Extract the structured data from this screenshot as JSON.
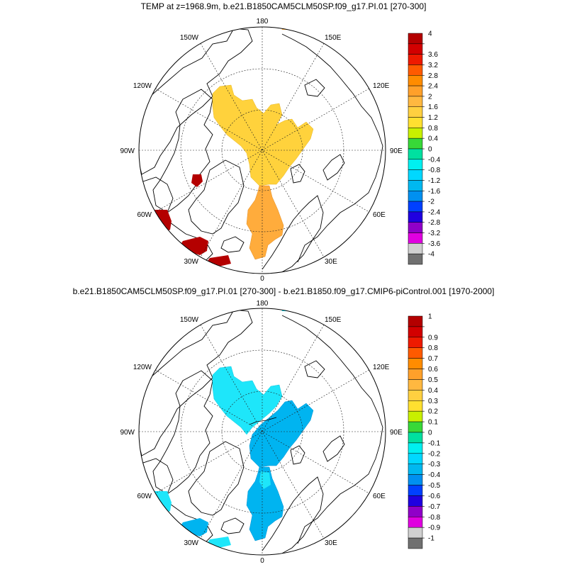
{
  "chart_data": [
    {
      "type": "polar-stereographic-map",
      "title": "TEMP at z=1968.9m, b.e21.B1850CAM5CLM50SP.f09_g17.PI.01 [270-300]",
      "longitude_labels": [
        "180",
        "150E",
        "120E",
        "90E",
        "60E",
        "30E",
        "0",
        "30W",
        "60W",
        "90W",
        "120W",
        "150W"
      ],
      "colorbar": {
        "labels": [
          "4",
          "3.6",
          "3.2",
          "2.8",
          "2.4",
          "2",
          "1.6",
          "1.2",
          "0.8",
          "0.4",
          "0",
          "-0.4",
          "-0.8",
          "-1.2",
          "-1.6",
          "-2",
          "-2.4",
          "-2.8",
          "-3.2",
          "-3.6",
          "-4"
        ],
        "colors": [
          "#b40000",
          "#d20000",
          "#ee1a00",
          "#ff5a00",
          "#ff8c00",
          "#ffa02a",
          "#ffb840",
          "#ffd040",
          "#ffe030",
          "#c8f000",
          "#38d838",
          "#00e0a0",
          "#00f0f0",
          "#00d8ff",
          "#00b8f0",
          "#0090f0",
          "#0040ff",
          "#2000e0",
          "#9000c8",
          "#e000e0",
          "#d0d0d0",
          "#707070"
        ]
      },
      "field_regions": [
        {
          "name": "central-arctic-warm-core",
          "value_range": [
            1.2,
            1.6
          ],
          "color": "#ffd23c"
        },
        {
          "name": "atlantic-sector-tongue",
          "value_range": [
            2.0,
            2.4
          ],
          "color": "#ffac3c"
        },
        {
          "name": "labrador-sea-patch",
          "value_range": [
            3.6,
            4.0
          ],
          "color": "#b40000"
        },
        {
          "name": "hudson-bay-patch",
          "value_range": [
            3.6,
            4.0
          ],
          "color": "#b40000"
        },
        {
          "name": "south-greenland-patch",
          "value_range": [
            3.6,
            4.0
          ],
          "color": "#b40000"
        },
        {
          "name": "iceland-sea-patch",
          "value_range": [
            3.6,
            4.0
          ],
          "color": "#b40000"
        }
      ]
    },
    {
      "type": "polar-stereographic-map",
      "title": "b.e21.B1850CAM5CLM50SP.f09_g17.PI.01 [270-300] - b.e21.B1850.f09_g17.CMIP6-piControl.001 [1970-2000]",
      "longitude_labels": [
        "180",
        "150E",
        "120E",
        "90E",
        "60E",
        "30E",
        "0",
        "30W",
        "60W",
        "90W",
        "120W",
        "150W"
      ],
      "colorbar": {
        "labels": [
          "1",
          "0.9",
          "0.8",
          "0.7",
          "0.6",
          "0.5",
          "0.4",
          "0.3",
          "0.2",
          "0.1",
          "0",
          "-0.1",
          "-0.2",
          "-0.3",
          "-0.4",
          "-0.5",
          "-0.6",
          "-0.7",
          "-0.8",
          "-0.9",
          "-1"
        ],
        "colors": [
          "#b40000",
          "#d20000",
          "#ee1a00",
          "#ff5a00",
          "#ff8c00",
          "#ffa02a",
          "#ffb840",
          "#ffd040",
          "#ffe030",
          "#c8f000",
          "#38d838",
          "#00e0a0",
          "#00f0f0",
          "#00d8ff",
          "#00b8f0",
          "#0090f0",
          "#0040ff",
          "#2000e0",
          "#9000c8",
          "#e000e0",
          "#d0d0d0",
          "#707070"
        ]
      },
      "field_regions": [
        {
          "name": "central-arctic-cool-core",
          "value_range": [
            -0.3,
            -0.2
          ],
          "color": "#1ee6fa"
        },
        {
          "name": "eurasian-basin-cool",
          "value_range": [
            -0.4,
            -0.3
          ],
          "color": "#00b4f0"
        },
        {
          "name": "atlantic-sector-cool",
          "value_range": [
            -0.4,
            -0.3
          ],
          "color": "#00b4f0"
        },
        {
          "name": "labrador-sea-cool",
          "value_range": [
            -0.3,
            -0.2
          ],
          "color": "#1ee6fa"
        },
        {
          "name": "south-greenland-cool",
          "value_range": [
            -0.4,
            -0.3
          ],
          "color": "#00b4f0"
        },
        {
          "name": "iceland-sea-cool",
          "value_range": [
            -0.3,
            -0.2
          ],
          "color": "#1ee6fa"
        }
      ]
    }
  ]
}
